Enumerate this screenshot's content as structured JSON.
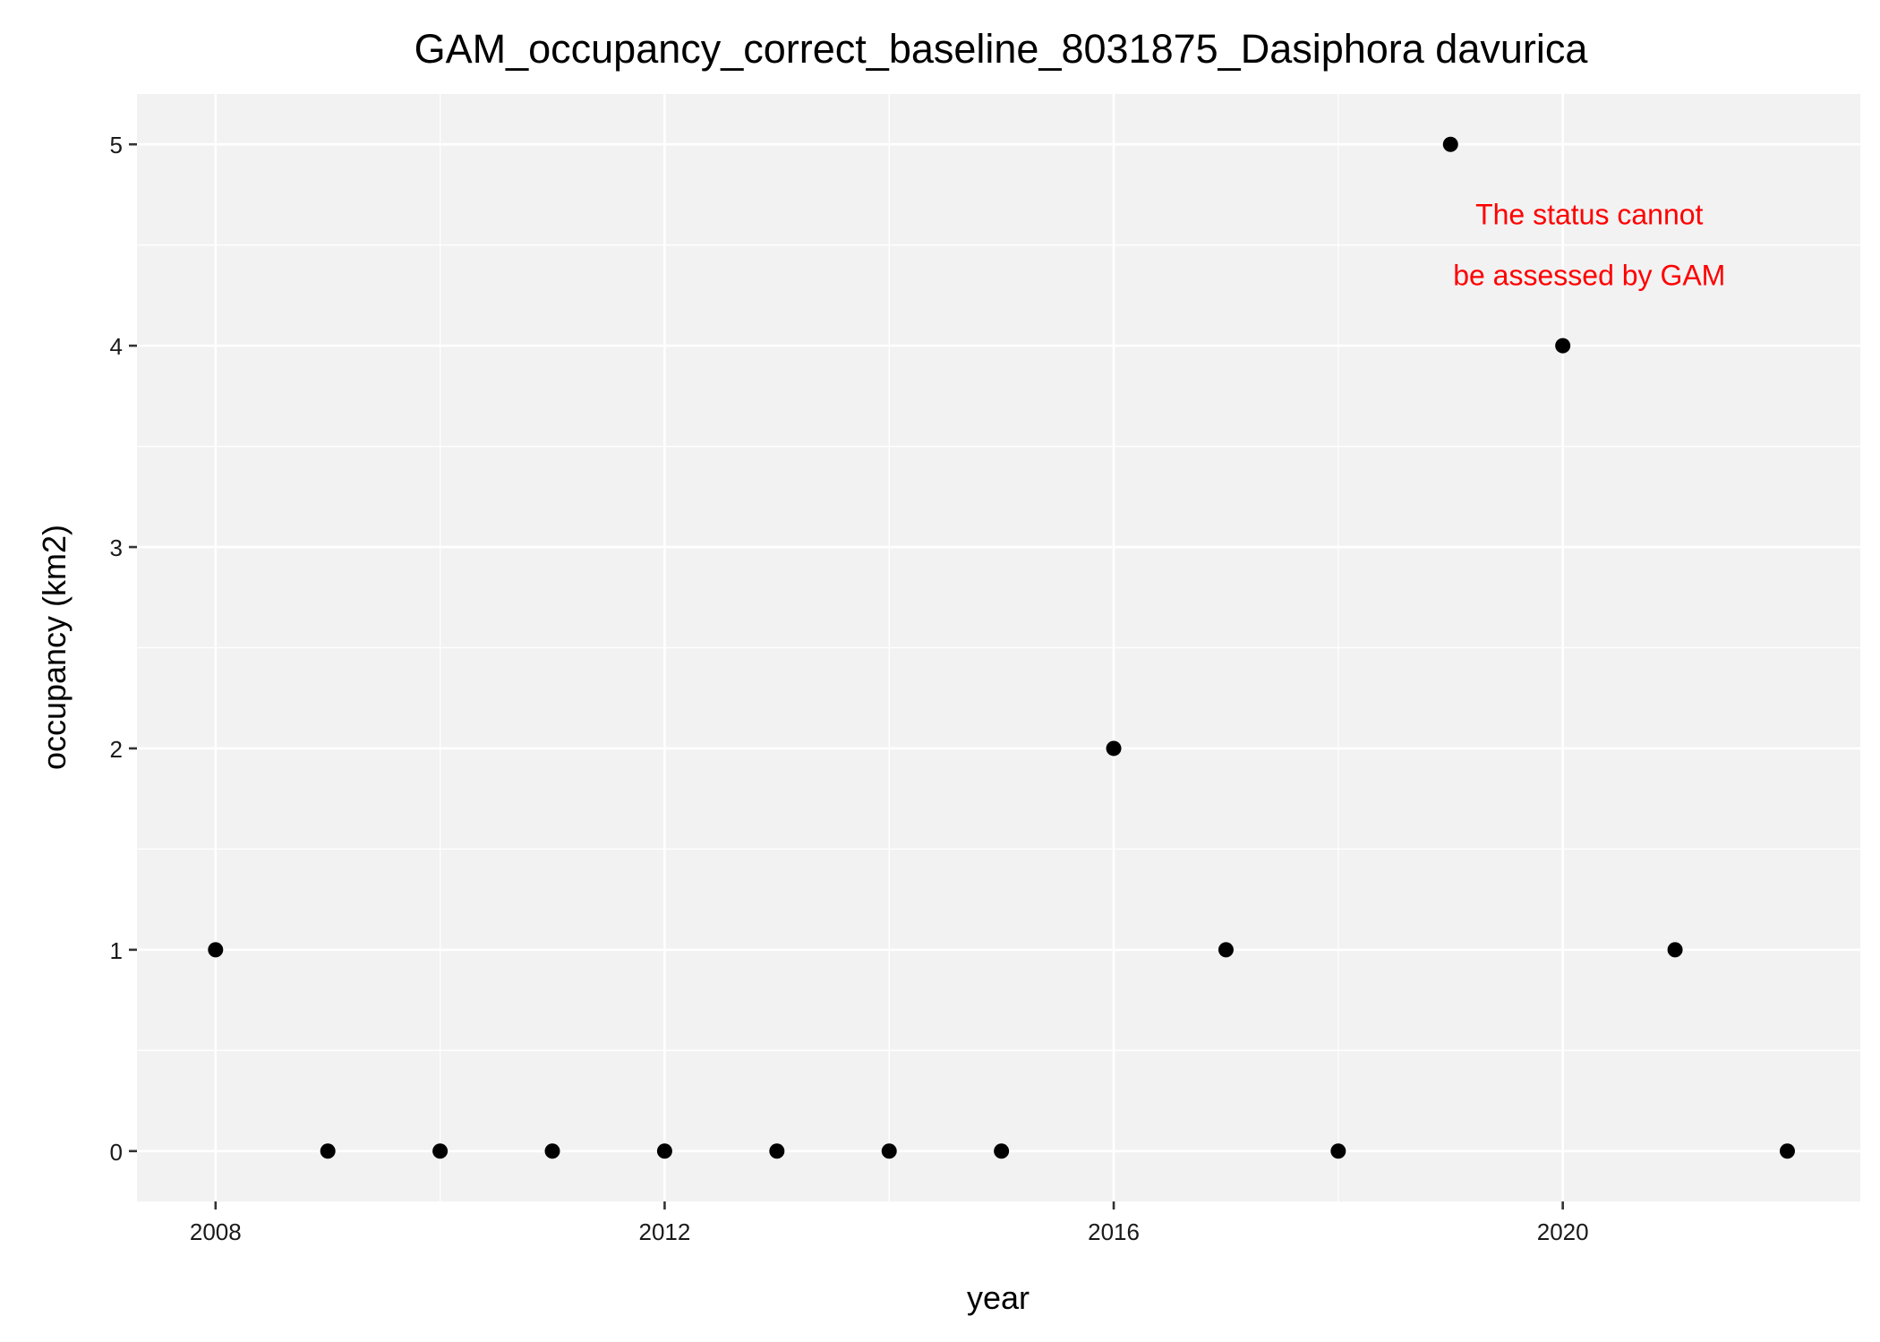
{
  "chart_data": {
    "type": "scatter",
    "title": "GAM_occupancy_correct_baseline_8031875_Dasiphora davurica",
    "xlabel": "year",
    "ylabel": "occupancy (km2)",
    "xlim": [
      2007.3,
      2022.65
    ],
    "ylim": [
      -0.25,
      5.25
    ],
    "x_ticks": [
      2008,
      2012,
      2016,
      2020
    ],
    "y_ticks": [
      0,
      1,
      2,
      3,
      4,
      5
    ],
    "grid": true,
    "legend": "none",
    "series": [
      {
        "name": "occupancy",
        "x": [
          2008,
          2009,
          2010,
          2011,
          2012,
          2013,
          2014,
          2015,
          2016,
          2017,
          2018,
          2019,
          2020,
          2021,
          2022
        ],
        "y": [
          1,
          0,
          0,
          0,
          0,
          0,
          0,
          0,
          2,
          1,
          0,
          5,
          4,
          1,
          0
        ]
      }
    ],
    "annotation": {
      "lines": [
        "The status cannot",
        "be assessed by GAM"
      ],
      "x": 2019,
      "y": 4.5,
      "color": "#ff0000"
    }
  },
  "colors": {
    "panel_background": "#f2f2f2",
    "grid_major": "#ffffff",
    "point": "#000000"
  }
}
